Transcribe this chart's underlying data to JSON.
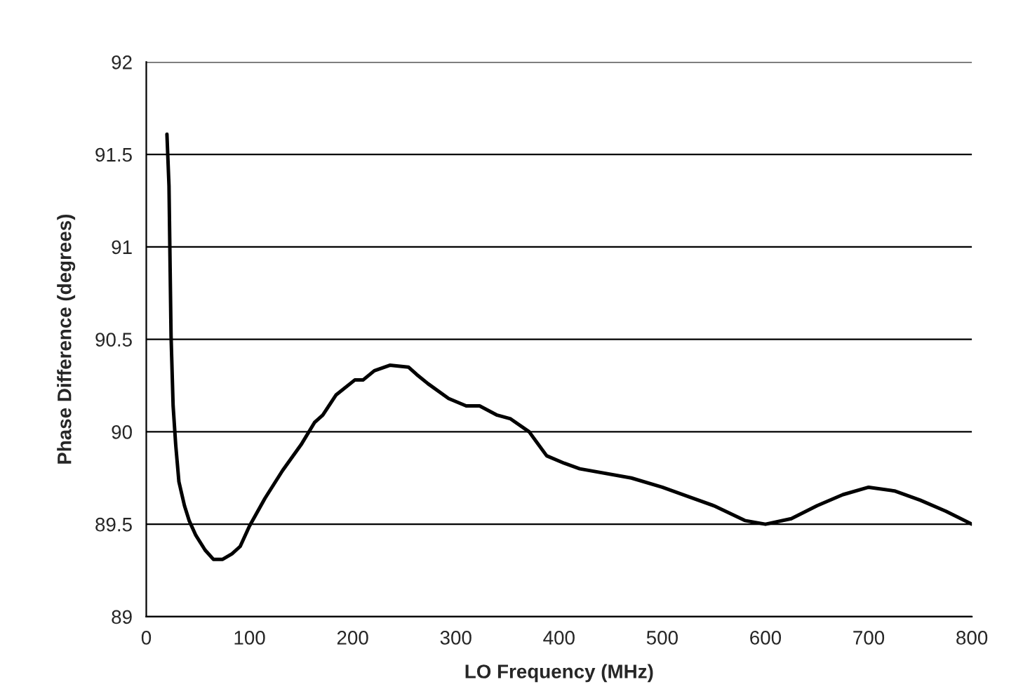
{
  "chart_data": {
    "type": "line",
    "xlabel": "LO Frequency (MHz)",
    "ylabel": "Phase Difference (degrees)",
    "x": [
      20,
      22,
      24,
      26,
      28.5,
      31.6,
      37,
      41.5,
      48,
      57,
      65,
      74,
      83,
      91,
      100,
      115,
      132,
      150,
      163,
      171,
      184,
      202,
      210,
      221,
      236,
      254,
      262,
      273,
      293,
      310,
      323,
      340,
      353,
      371,
      388,
      405,
      420,
      470,
      500,
      525,
      550,
      580,
      600,
      625,
      650,
      675,
      700,
      725,
      750,
      775,
      800
    ],
    "series": [
      {
        "color": "#000000",
        "values": [
          91.61,
          91.33,
          90.52,
          90.14,
          89.93,
          89.73,
          89.6,
          89.52,
          89.44,
          89.36,
          89.31,
          89.31,
          89.34,
          89.38,
          89.49,
          89.64,
          89.79,
          89.93,
          90.05,
          90.09,
          90.2,
          90.28,
          90.28,
          90.33,
          90.36,
          90.35,
          90.31,
          90.26,
          90.18,
          90.14,
          90.14,
          90.09,
          90.07,
          90.0,
          89.87,
          89.83,
          89.8,
          89.75,
          89.7,
          89.65,
          89.6,
          89.52,
          89.5,
          89.53,
          89.6,
          89.66,
          89.7,
          89.68,
          89.63,
          89.57,
          89.5
        ]
      }
    ],
    "xlim": [
      0,
      800
    ],
    "xticks": [
      0,
      100,
      200,
      300,
      400,
      500,
      600,
      700,
      800
    ],
    "ylim": [
      89,
      92
    ],
    "yticks": [
      89,
      89.5,
      90,
      90.5,
      91,
      91.5,
      92
    ],
    "grid": "y",
    "legend": false,
    "marker": "none",
    "line_style": "solid"
  }
}
